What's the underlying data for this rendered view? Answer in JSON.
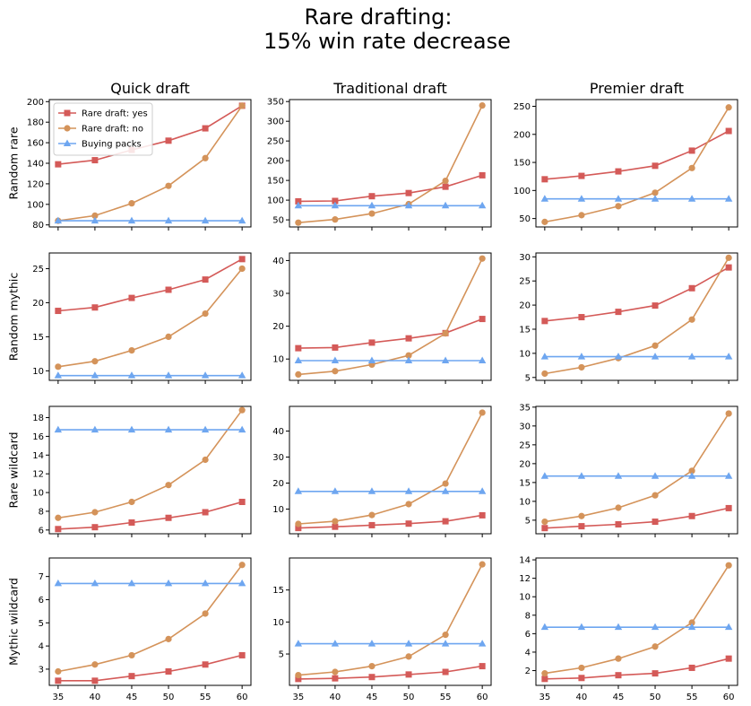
{
  "suptitle": [
    "Rare drafting:",
    "15% win rate decrease"
  ],
  "columns": [
    "Quick draft",
    "Traditional draft",
    "Premier draft"
  ],
  "rows": [
    "Random rare",
    "Random mythic",
    "Rare wildcard",
    "Mythic wildcard"
  ],
  "legend": {
    "placement": "top-left of first panel",
    "entries": [
      "Rare draft: yes",
      "Rare draft: no",
      "Buying packs"
    ]
  },
  "colors": {
    "Rare draft: yes": "#d45a58",
    "Rare draft: no": "#d4935a",
    "Buying packs": "#6ea6f0"
  },
  "markers": {
    "Rare draft: yes": "square",
    "Rare draft: no": "circle",
    "Buying packs": "triangle"
  },
  "chart_data": [
    {
      "type": "line",
      "row": "Random rare",
      "column": "Quick draft",
      "x": [
        35,
        40,
        45,
        50,
        55,
        60
      ],
      "ylim": [
        78,
        202
      ],
      "yticks": [
        80,
        100,
        120,
        140,
        160,
        180,
        200
      ],
      "series": [
        {
          "name": "Rare draft: yes",
          "values": [
            139,
            143,
            153,
            162,
            174,
            196
          ]
        },
        {
          "name": "Rare draft: no",
          "values": [
            84,
            89,
            101,
            118,
            145,
            196
          ]
        },
        {
          "name": "Buying packs",
          "values": [
            84,
            84,
            84,
            84,
            84,
            84
          ]
        }
      ]
    },
    {
      "type": "line",
      "row": "Random rare",
      "column": "Traditional draft",
      "x": [
        35,
        40,
        45,
        50,
        55,
        60
      ],
      "ylim": [
        32,
        355
      ],
      "yticks": [
        50,
        100,
        150,
        200,
        250,
        300,
        350
      ],
      "series": [
        {
          "name": "Rare draft: yes",
          "values": [
            97,
            98,
            110,
            118,
            134,
            163
          ]
        },
        {
          "name": "Rare draft: no",
          "values": [
            43,
            51,
            66,
            90,
            149,
            340
          ]
        },
        {
          "name": "Buying packs",
          "values": [
            86,
            86,
            86,
            86,
            86,
            86
          ]
        }
      ]
    },
    {
      "type": "line",
      "row": "Random rare",
      "column": "Premier draft",
      "x": [
        35,
        40,
        45,
        50,
        55,
        60
      ],
      "ylim": [
        35,
        262
      ],
      "yticks": [
        50,
        100,
        150,
        200,
        250
      ],
      "series": [
        {
          "name": "Rare draft: yes",
          "values": [
            120,
            126,
            134,
            144,
            171,
            206
          ]
        },
        {
          "name": "Rare draft: no",
          "values": [
            44,
            56,
            72,
            96,
            140,
            248
          ]
        },
        {
          "name": "Buying packs",
          "values": [
            85,
            85,
            85,
            85,
            85,
            85
          ]
        }
      ]
    },
    {
      "type": "line",
      "row": "Random mythic",
      "column": "Quick draft",
      "x": [
        35,
        40,
        45,
        50,
        55,
        60
      ],
      "ylim": [
        8.6,
        27.3
      ],
      "yticks": [
        10,
        15,
        20,
        25
      ],
      "series": [
        {
          "name": "Rare draft: yes",
          "values": [
            18.8,
            19.3,
            20.7,
            21.9,
            23.4,
            26.4
          ]
        },
        {
          "name": "Rare draft: no",
          "values": [
            10.6,
            11.4,
            13.0,
            15.0,
            18.4,
            25.0
          ]
        },
        {
          "name": "Buying packs",
          "values": [
            9.3,
            9.3,
            9.3,
            9.3,
            9.3,
            9.3
          ]
        }
      ]
    },
    {
      "type": "line",
      "row": "Random mythic",
      "column": "Traditional draft",
      "x": [
        35,
        40,
        45,
        50,
        55,
        60
      ],
      "ylim": [
        3.5,
        42.3
      ],
      "yticks": [
        10,
        20,
        30,
        40
      ],
      "series": [
        {
          "name": "Rare draft: yes",
          "values": [
            13.3,
            13.5,
            15.0,
            16.3,
            17.9,
            22.2
          ]
        },
        {
          "name": "Rare draft: no",
          "values": [
            5.3,
            6.3,
            8.3,
            11.1,
            17.8,
            40.6
          ]
        },
        {
          "name": "Buying packs",
          "values": [
            9.5,
            9.5,
            9.5,
            9.5,
            9.5,
            9.5
          ]
        }
      ]
    },
    {
      "type": "line",
      "row": "Random mythic",
      "column": "Premier draft",
      "x": [
        35,
        40,
        45,
        50,
        55,
        60
      ],
      "ylim": [
        4.4,
        30.8
      ],
      "yticks": [
        5,
        10,
        15,
        20,
        25,
        30
      ],
      "series": [
        {
          "name": "Rare draft: yes",
          "values": [
            16.7,
            17.5,
            18.6,
            19.9,
            23.5,
            27.8
          ]
        },
        {
          "name": "Rare draft: no",
          "values": [
            5.8,
            7.1,
            9.0,
            11.6,
            17.0,
            29.8
          ]
        },
        {
          "name": "Buying packs",
          "values": [
            9.3,
            9.3,
            9.3,
            9.3,
            9.3,
            9.3
          ]
        }
      ]
    },
    {
      "type": "line",
      "row": "Rare wildcard",
      "column": "Quick draft",
      "x": [
        35,
        40,
        45,
        50,
        55,
        60
      ],
      "ylim": [
        5.6,
        19.2
      ],
      "yticks": [
        6,
        8,
        10,
        12,
        14,
        16,
        18
      ],
      "series": [
        {
          "name": "Rare draft: yes",
          "values": [
            6.1,
            6.3,
            6.8,
            7.3,
            7.9,
            9.0
          ]
        },
        {
          "name": "Rare draft: no",
          "values": [
            7.3,
            7.9,
            9.0,
            10.8,
            13.5,
            18.8
          ]
        },
        {
          "name": "Buying packs",
          "values": [
            16.7,
            16.7,
            16.7,
            16.7,
            16.7,
            16.7
          ]
        }
      ]
    },
    {
      "type": "line",
      "row": "Rare wildcard",
      "column": "Traditional draft",
      "x": [
        35,
        40,
        45,
        50,
        55,
        60
      ],
      "ylim": [
        0.5,
        49.5
      ],
      "yticks": [
        10,
        20,
        30,
        40
      ],
      "series": [
        {
          "name": "Rare draft: yes",
          "values": [
            2.7,
            3.2,
            3.8,
            4.4,
            5.3,
            7.6
          ]
        },
        {
          "name": "Rare draft: no",
          "values": [
            4.3,
            5.3,
            7.7,
            11.9,
            19.8,
            47.1
          ]
        },
        {
          "name": "Buying packs",
          "values": [
            16.8,
            16.8,
            16.8,
            16.8,
            16.8,
            16.8
          ]
        }
      ]
    },
    {
      "type": "line",
      "row": "Rare wildcard",
      "column": "Premier draft",
      "x": [
        35,
        40,
        45,
        50,
        55,
        60
      ],
      "ylim": [
        1.4,
        35.2
      ],
      "yticks": [
        5,
        10,
        15,
        20,
        25,
        30,
        35
      ],
      "series": [
        {
          "name": "Rare draft: yes",
          "values": [
            2.9,
            3.4,
            3.9,
            4.6,
            6.1,
            8.2
          ]
        },
        {
          "name": "Rare draft: no",
          "values": [
            4.6,
            6.1,
            8.3,
            11.6,
            18.1,
            33.3
          ]
        },
        {
          "name": "Buying packs",
          "values": [
            16.7,
            16.7,
            16.7,
            16.7,
            16.7,
            16.7
          ]
        }
      ]
    },
    {
      "type": "line",
      "row": "Mythic wildcard",
      "column": "Quick draft",
      "x": [
        35,
        40,
        45,
        50,
        55,
        60
      ],
      "ylim": [
        2.3,
        7.8
      ],
      "yticks": [
        3,
        4,
        5,
        6,
        7
      ],
      "series": [
        {
          "name": "Rare draft: yes",
          "values": [
            2.5,
            2.5,
            2.7,
            2.9,
            3.2,
            3.6
          ]
        },
        {
          "name": "Rare draft: no",
          "values": [
            2.9,
            3.2,
            3.6,
            4.3,
            5.4,
            7.5
          ]
        },
        {
          "name": "Buying packs",
          "values": [
            6.7,
            6.7,
            6.7,
            6.7,
            6.7,
            6.7
          ]
        }
      ]
    },
    {
      "type": "line",
      "row": "Mythic wildcard",
      "column": "Traditional draft",
      "x": [
        35,
        40,
        45,
        50,
        55,
        60
      ],
      "ylim": [
        0.1,
        20.0
      ],
      "yticks": [
        5,
        10,
        15
      ],
      "series": [
        {
          "name": "Rare draft: yes",
          "values": [
            1.1,
            1.2,
            1.4,
            1.8,
            2.2,
            3.1
          ]
        },
        {
          "name": "Rare draft: no",
          "values": [
            1.7,
            2.2,
            3.1,
            4.6,
            8.0,
            19.0
          ]
        },
        {
          "name": "Buying packs",
          "values": [
            6.6,
            6.6,
            6.6,
            6.6,
            6.6,
            6.6
          ]
        }
      ]
    },
    {
      "type": "line",
      "row": "Mythic wildcard",
      "column": "Premier draft",
      "x": [
        35,
        40,
        45,
        50,
        55,
        60
      ],
      "ylim": [
        0.4,
        14.2
      ],
      "yticks": [
        2,
        4,
        6,
        8,
        10,
        12,
        14
      ],
      "series": [
        {
          "name": "Rare draft: yes",
          "values": [
            1.1,
            1.2,
            1.5,
            1.7,
            2.3,
            3.3
          ]
        },
        {
          "name": "Rare draft: no",
          "values": [
            1.7,
            2.3,
            3.3,
            4.6,
            7.2,
            13.4
          ]
        },
        {
          "name": "Buying packs",
          "values": [
            6.7,
            6.7,
            6.7,
            6.7,
            6.7,
            6.7
          ]
        }
      ]
    }
  ]
}
